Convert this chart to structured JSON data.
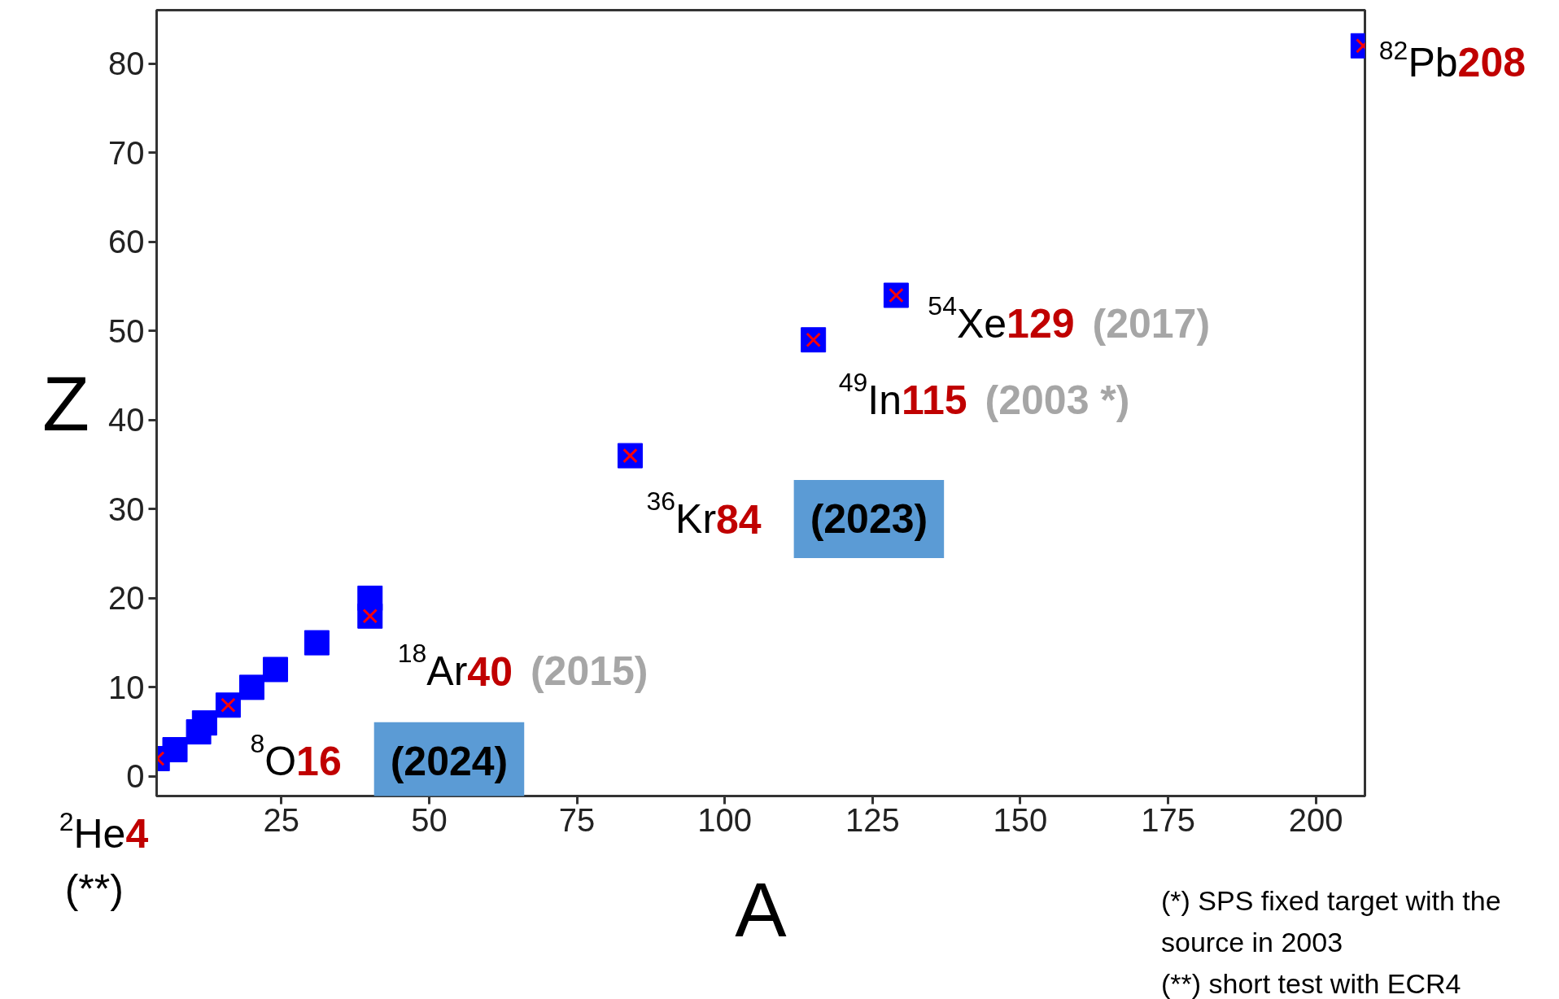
{
  "chart_data": {
    "type": "scatter",
    "xlabel": "A",
    "ylabel": "Z",
    "xlim": [
      3.9,
      208.3
    ],
    "ylim": [
      -2.2,
      86
    ],
    "xticks": [
      25,
      50,
      75,
      100,
      125,
      150,
      175,
      200
    ],
    "yticks": [
      0,
      10,
      20,
      30,
      40,
      50,
      60,
      70,
      80
    ],
    "grid": false,
    "series": [
      {
        "color": "#0000ff",
        "marker": "square",
        "x": [
          4,
          7,
          11,
          12,
          16,
          20,
          24,
          31,
          40,
          40,
          84,
          115,
          129,
          208
        ],
        "values": [
          2,
          3,
          5,
          6,
          8,
          10,
          12,
          15,
          18,
          20,
          36,
          49,
          54,
          82
        ]
      },
      {
        "color": "#ff0000",
        "marker": "cross",
        "x": [
          4,
          16,
          40,
          84,
          115,
          129,
          208
        ],
        "values": [
          2,
          8,
          18,
          36,
          49,
          54,
          82
        ]
      }
    ],
    "annotations": [
      {
        "text": "$^{82}$Pb208",
        "x": 208,
        "y": 82
      },
      {
        "text": "$^{54}$Xe129 (2017)",
        "x": 129,
        "y": 54
      },
      {
        "text": "$^{49}$In115 (2003 *)",
        "x": 115,
        "y": 49
      },
      {
        "text": "$^{36}$Kr84 (2023)",
        "x": 84,
        "y": 36
      },
      {
        "text": "$^{18}$Ar40 (2015)",
        "x": 40,
        "y": 18
      },
      {
        "text": "$^{8}$O16 (2024)",
        "x": 16,
        "y": 8
      },
      {
        "text": "$^{2}$He4\n(**)",
        "x": 4,
        "y": 2
      },
      "(*) SPS fixed target with the\nsource in 2003",
      "(**) short test with ECR4"
    ]
  }
}
